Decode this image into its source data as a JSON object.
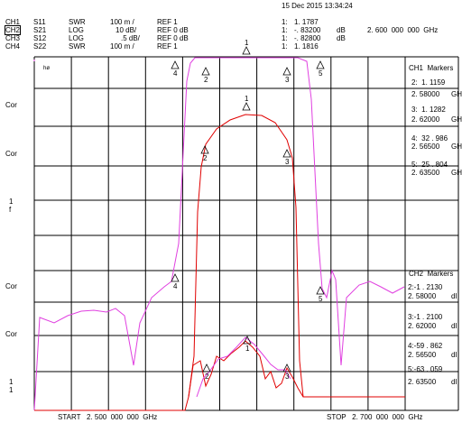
{
  "header": {
    "date": "15 Dec 2015 13:34:24",
    "channels": [
      {
        "ch": "CH1",
        "param": "S11",
        "fmt": "SWR",
        "scale": "100 m /",
        "ref": "REF 1"
      },
      {
        "ch": "CH2",
        "param": "S21",
        "fmt": "LOG",
        "scale": "10 dB/",
        "ref": "REF 0 dB"
      },
      {
        "ch": "CH3",
        "param": "S12",
        "fmt": "LOG",
        "scale": ".5 dB/",
        "ref": "REF 0 dB"
      },
      {
        "ch": "CH4",
        "param": "S22",
        "fmt": "SWR",
        "scale": "100 m /",
        "ref": "REF 1"
      }
    ],
    "markers_top": [
      {
        "id": "1:",
        "val": "1. 1787",
        "unit": ""
      },
      {
        "id": "1:",
        "val": "-. 83200",
        "unit": "dB"
      },
      {
        "id": "1:",
        "val": "-. 82800",
        "unit": "dB"
      },
      {
        "id": "1:",
        "val": "1. 1816",
        "unit": ""
      }
    ],
    "marker_freq": "2. 600  000  000  GHz"
  },
  "left_labels": [
    "Cor",
    "Cor",
    "1",
    "f",
    "Cor",
    "Cor",
    "1",
    "1"
  ],
  "small_label": "hø",
  "ch1_markers": {
    "title": "CH1  Markers",
    "entries": [
      {
        "label": "2:  1. 1159",
        "freq": "2. 58000",
        "unit": "GH"
      },
      {
        "label": "3:  1. 1282",
        "freq": "2. 62000",
        "unit": "GH"
      },
      {
        "label": "4:  32 . 986",
        "freq": "2. 56500",
        "unit": "GH"
      },
      {
        "label": "5:  25 . 804",
        "freq": "2. 63500",
        "unit": "GH"
      }
    ]
  },
  "ch2_markers": {
    "title": "CH2  Markers",
    "entries": [
      {
        "label": "2:-1 . 2130",
        "freq": "2. 58000",
        "unit": "dI"
      },
      {
        "label": "3:-1 . 2100",
        "freq": "2. 62000",
        "unit": "dI"
      },
      {
        "label": "4:-59 . 862",
        "freq": "2. 56500",
        "unit": "dI"
      },
      {
        "label": "5:-63 . 059",
        "freq": "2. 63500",
        "unit": "dI"
      }
    ]
  },
  "footer": {
    "start": "START   2. 500  000  000  GHz",
    "stop": "STOP   2. 700  000  000  GHz"
  },
  "marker_numbers": [
    "1",
    "2",
    "3",
    "4",
    "5",
    "1",
    "2",
    "3",
    "1",
    "2",
    "3",
    "4",
    "5"
  ],
  "colors": {
    "magenta": "#e040e0",
    "red": "#e00000",
    "grid": "#000000"
  }
}
